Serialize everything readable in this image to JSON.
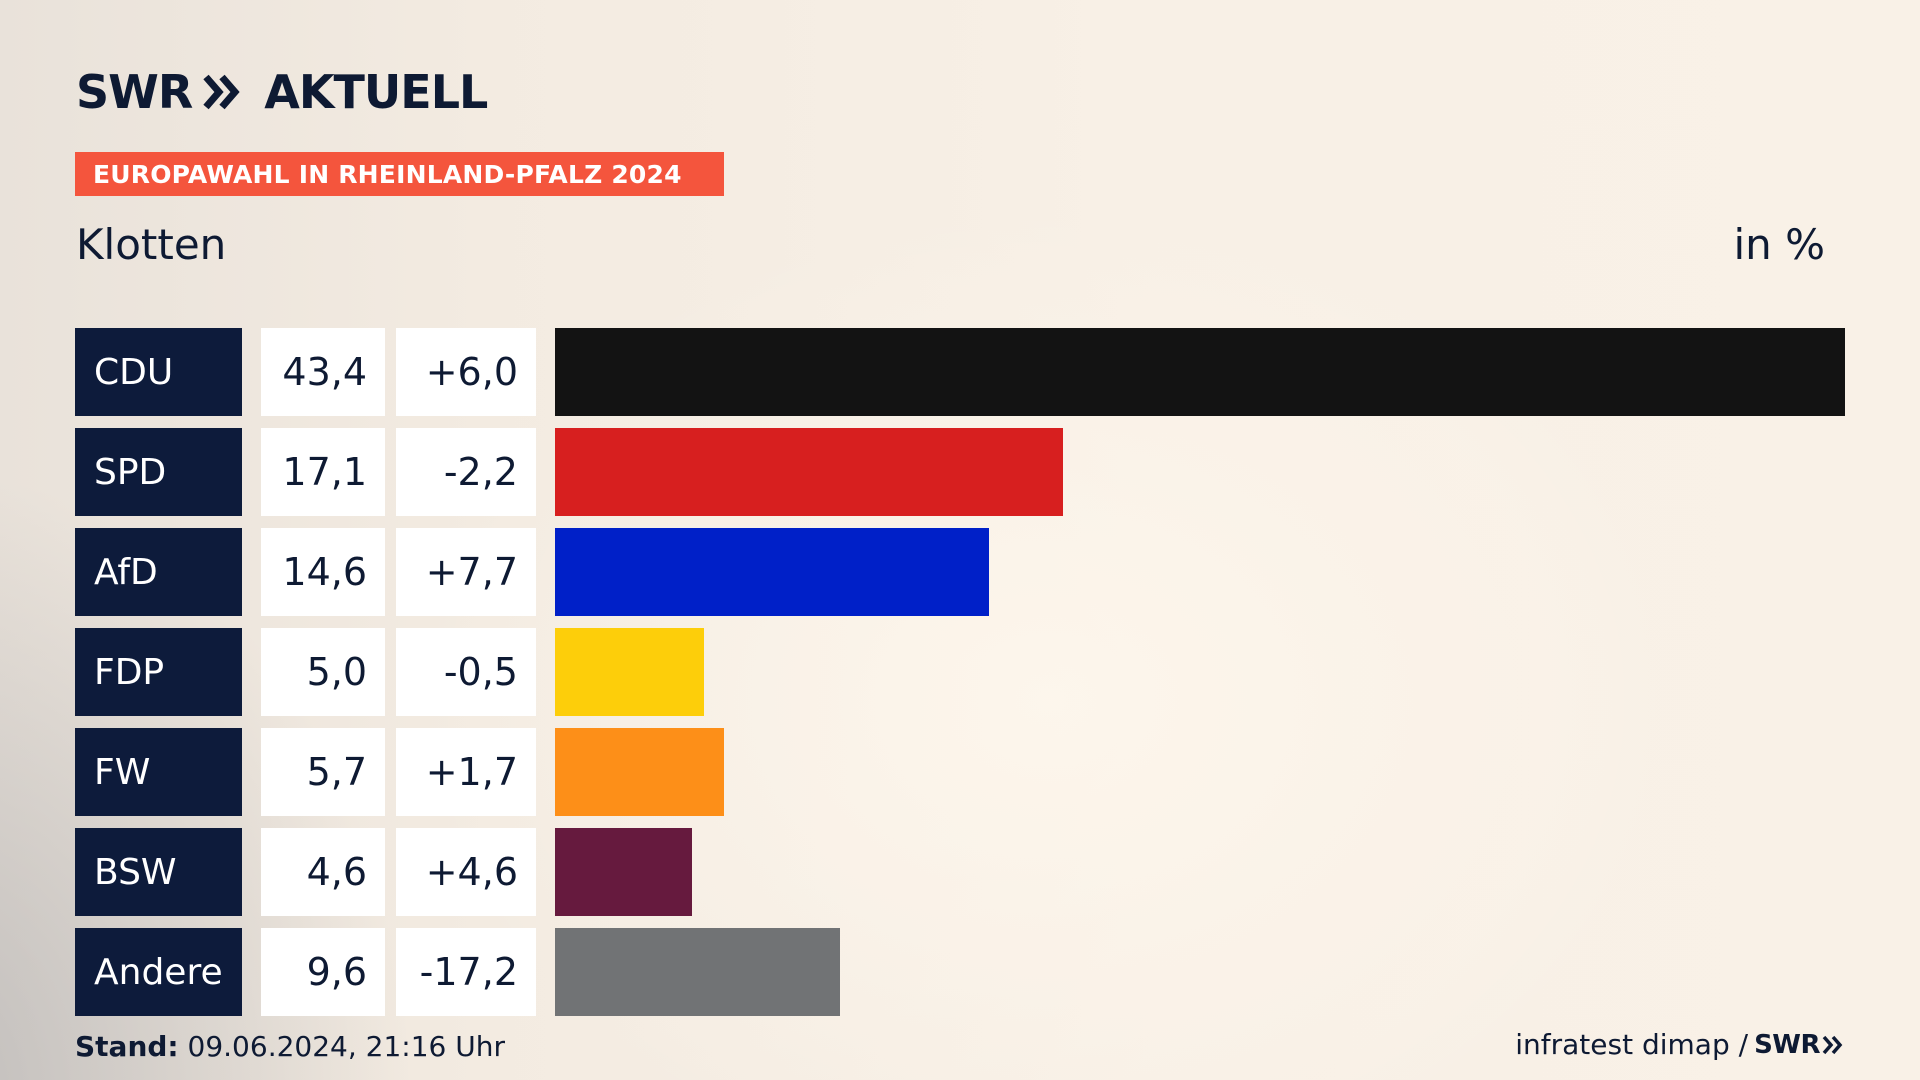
{
  "header": {
    "brand_left": "SWR",
    "brand_right": "AKTUELL",
    "badge": "EUROPAWAHL IN RHEINLAND-PFALZ 2024",
    "subtitle": "Klotten",
    "unit": "in %"
  },
  "footer": {
    "stand_label": "Stand:",
    "stand_value": "09.06.2024, 21:16 Uhr",
    "source": "infratest dimap /",
    "source_brand": "SWR"
  },
  "chart_data": {
    "type": "bar",
    "orientation": "horizontal",
    "categories": [
      "CDU",
      "SPD",
      "AfD",
      "FDP",
      "FW",
      "BSW",
      "Andere"
    ],
    "values": [
      43.4,
      17.1,
      14.6,
      5.0,
      5.7,
      4.6,
      9.6
    ],
    "values_label": [
      "43,4",
      "17,1",
      "14,6",
      "5,0",
      "5,7",
      "4,6",
      "9,6"
    ],
    "changes_label": [
      "+6,0",
      "-2,2",
      "+7,7",
      "-0,5",
      "+1,7",
      "+4,6",
      "-17,2"
    ],
    "colors": [
      "#131313",
      "#d71f1f",
      "#0020c8",
      "#fdce0a",
      "#fd8f18",
      "#661a3e",
      "#717375"
    ],
    "xlim": [
      0,
      43.4
    ]
  }
}
